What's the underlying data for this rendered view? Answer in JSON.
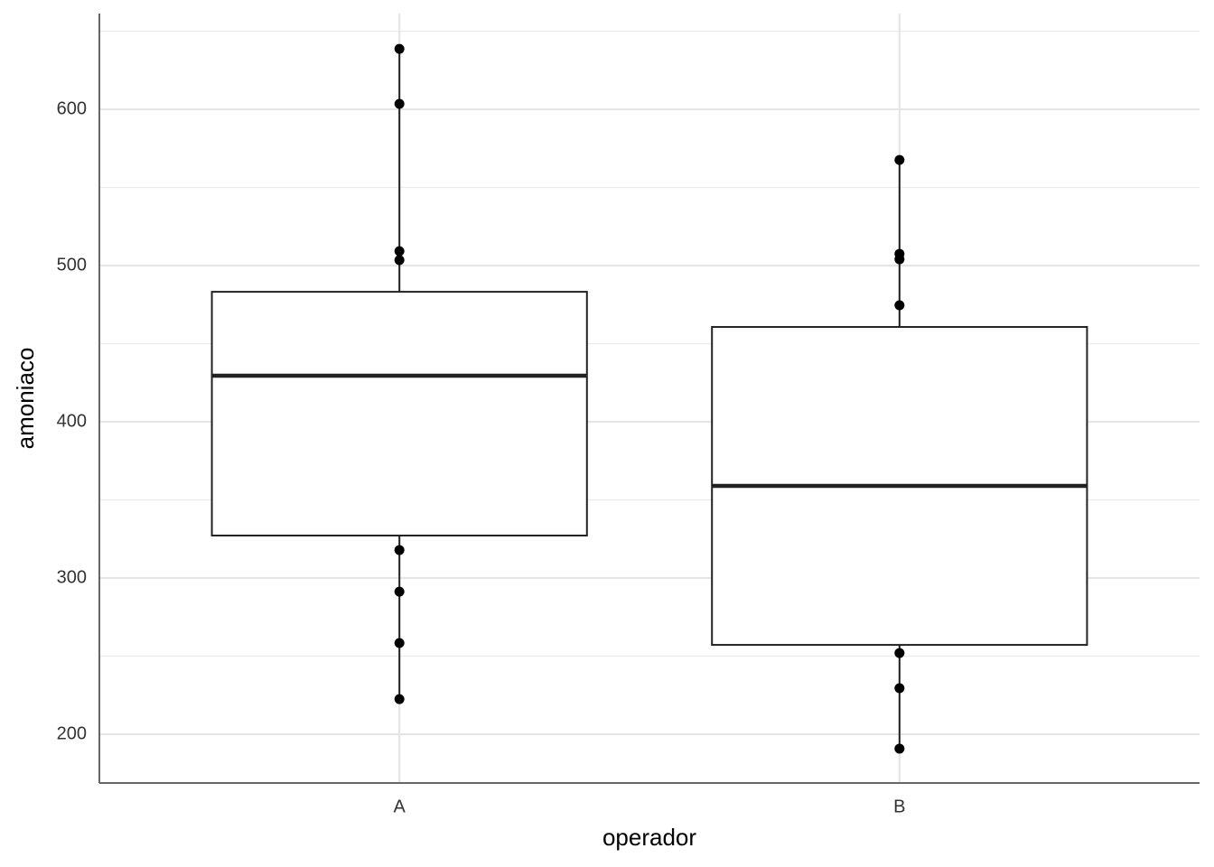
{
  "chart_data": {
    "type": "boxplot",
    "x_label": "operador",
    "y_label": "amoniaco",
    "categories": [
      "A",
      "B"
    ],
    "boxes": [
      {
        "min": 222.5,
        "q1": 327.2,
        "median": 429.5,
        "q3": 483.2,
        "max": 638.7
      },
      {
        "min": 190.8,
        "q1": 257.2,
        "median": 359,
        "q3": 460.7,
        "max": 567.6
      }
    ],
    "points": [
      [
        638.7,
        603.5,
        509.2,
        503.5,
        317.9,
        291.3,
        258.4,
        222.5
      ],
      [
        567.6,
        507.5,
        504,
        474.6,
        252,
        229.5,
        190.8
      ]
    ],
    "color": "#222222",
    "ylim": [
      168.8,
      661.3
    ],
    "yticks": [
      200,
      300,
      400,
      500,
      600
    ],
    "minor_grid": [
      250,
      350,
      450,
      550,
      650
    ],
    "grid": true
  }
}
